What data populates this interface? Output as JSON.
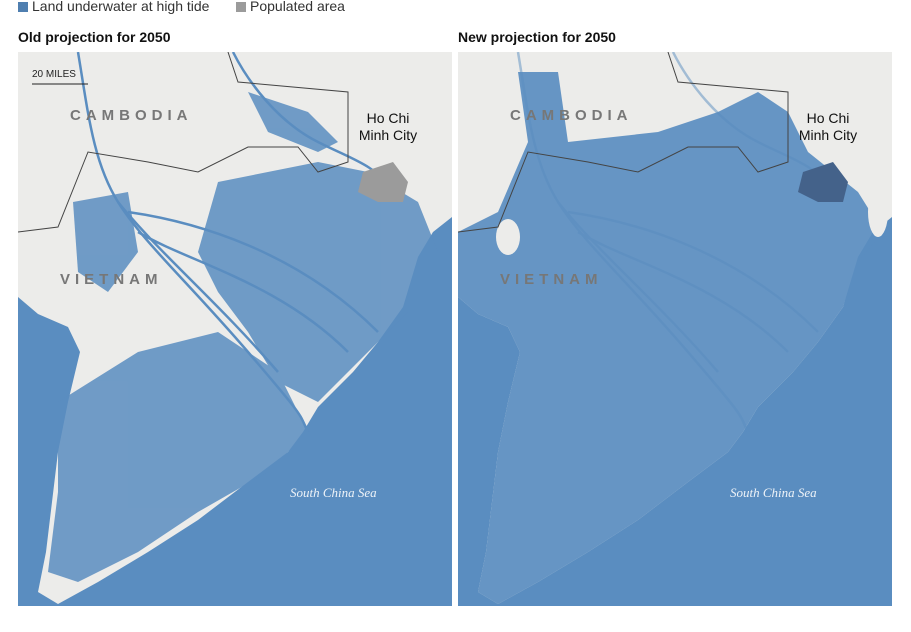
{
  "legend": [
    {
      "label": "Land underwater at high tide",
      "color": "#4f7fb0"
    },
    {
      "label": "Populated area",
      "color": "#9b9b9b"
    }
  ],
  "panels": [
    {
      "title": "Old projection for 2050",
      "scale_label": "20 MILES",
      "country_north": "CAMBODIA",
      "country_south": "VIETNAM",
      "city": [
        "Ho Chi",
        "Minh City"
      ],
      "sea": "South China Sea"
    },
    {
      "title": "New projection for 2050",
      "country_north": "CAMBODIA",
      "country_south": "VIETNAM",
      "city": [
        "Ho Chi",
        "Minh City"
      ],
      "sea": "South China Sea"
    }
  ]
}
